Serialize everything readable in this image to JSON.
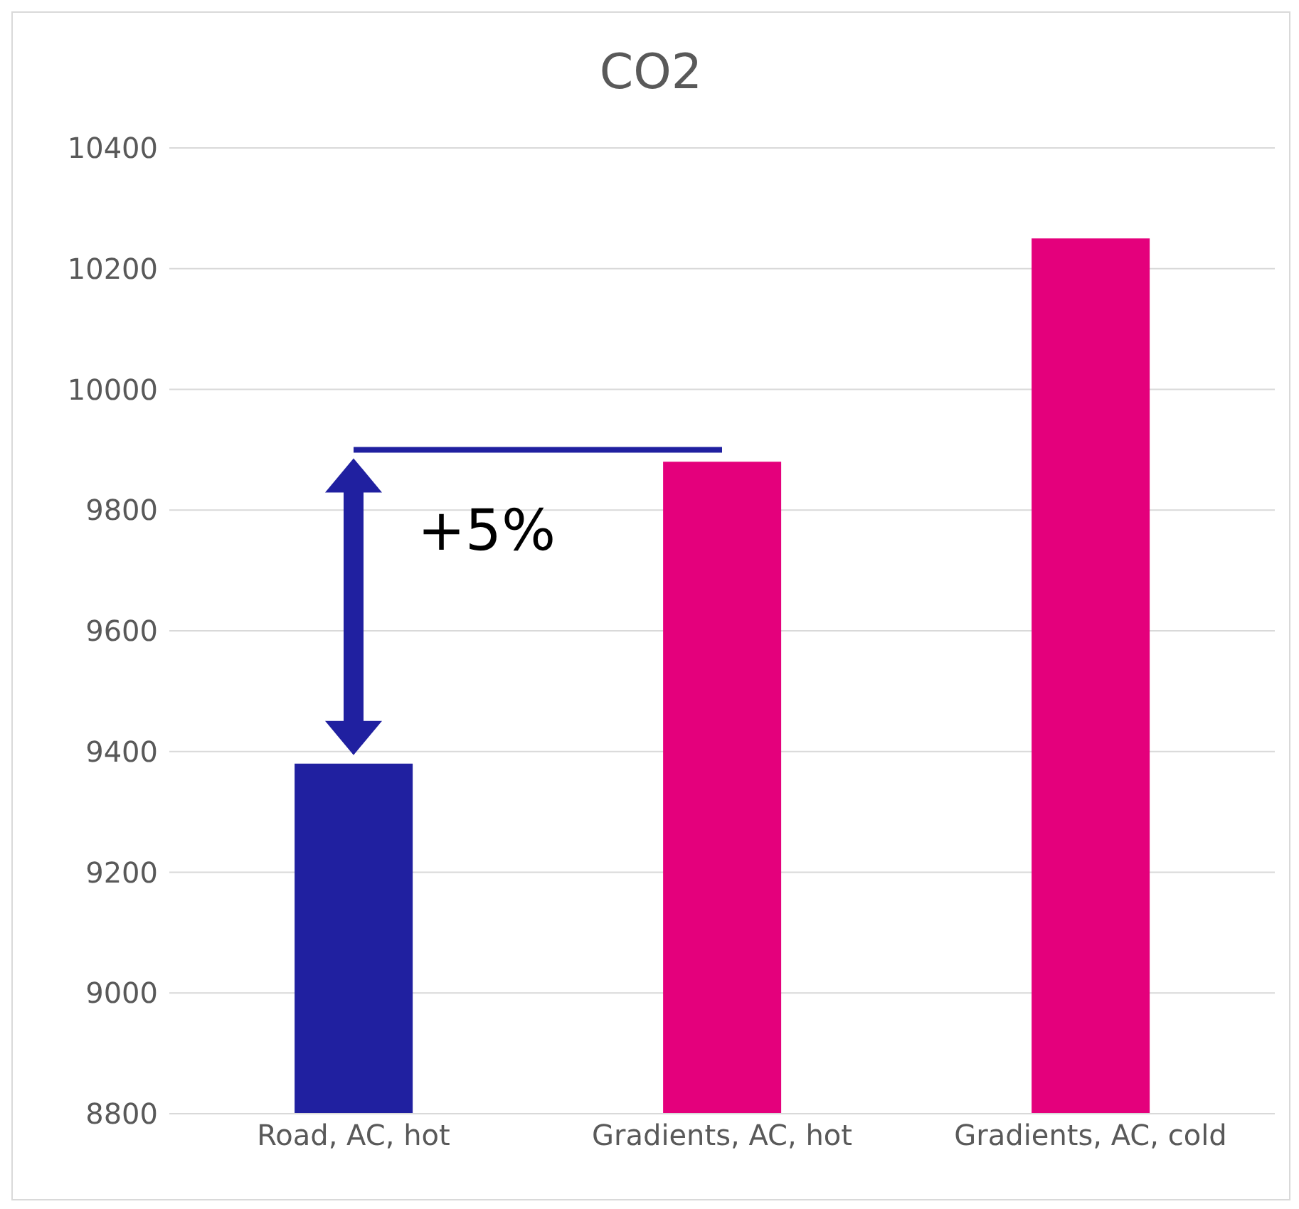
{
  "chart_data": {
    "type": "bar",
    "title": "CO2",
    "categories": [
      "Road, AC, hot",
      "Gradients, AC, hot",
      "Gradients, AC, cold"
    ],
    "values": [
      9380,
      9880,
      10250
    ],
    "colors": [
      "#2020a0",
      "#e4007c",
      "#e4007c"
    ],
    "ylim": [
      8800,
      10400
    ],
    "yticks": [
      8800,
      9000,
      9200,
      9400,
      9600,
      9800,
      10000,
      10200,
      10400
    ],
    "grid": "y",
    "ref_lines": [
      {
        "axis": "y",
        "value": 9900,
        "color": "#2020a0"
      }
    ],
    "annotations": [
      "+5%"
    ]
  }
}
